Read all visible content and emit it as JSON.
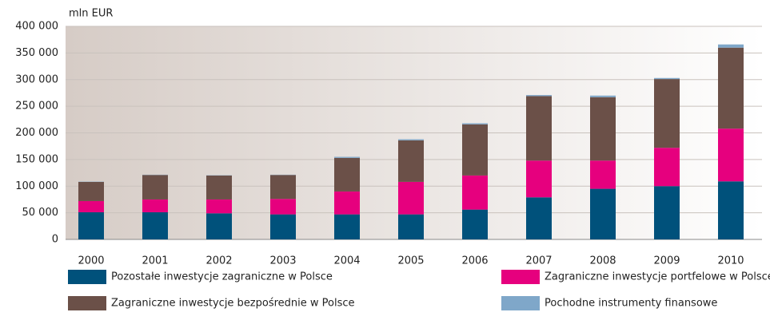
{
  "chart_data": {
    "type": "stacked_bar",
    "y_label": "mln EUR",
    "categories": [
      "2000",
      "2001",
      "2002",
      "2003",
      "2004",
      "2005",
      "2006",
      "2007",
      "2008",
      "2009",
      "2010"
    ],
    "series": [
      {
        "name": "Pozostałe inwestycje zagraniczne w Polsce",
        "color": "#00517b",
        "values": [
          51000,
          51000,
          49000,
          47000,
          47000,
          47000,
          56000,
          79000,
          95000,
          100000,
          109000
        ]
      },
      {
        "name": "Zagraniczne inwestycje portfelowe w Polsce",
        "color": "#e6007e",
        "values": [
          21000,
          24000,
          26000,
          29000,
          43000,
          61000,
          64000,
          69000,
          53000,
          72000,
          99000
        ]
      },
      {
        "name": "Zagraniczne inwestycje bezpośrednie w Polsce",
        "color": "#6b5048",
        "values": [
          36000,
          46000,
          45000,
          45000,
          63000,
          78000,
          96000,
          121000,
          119000,
          129000,
          152000
        ]
      },
      {
        "name": "Pochodne instrumenty finansowe",
        "color": "#7fa7c9",
        "values": [
          500,
          500,
          500,
          500,
          2000,
          2000,
          2000,
          2000,
          3000,
          2000,
          6000
        ]
      }
    ],
    "ylim": [
      0,
      400000
    ],
    "yticks": [
      0,
      {
        "value": 50000,
        "label": "50 000"
      },
      {
        "value": 100000,
        "label": "100 000"
      },
      {
        "value": 150000,
        "label": "150 000"
      },
      {
        "value": 200000,
        "label": "200 000"
      },
      {
        "value": 250000,
        "label": "250 000"
      },
      {
        "value": 300000,
        "label": "300 000"
      },
      {
        "value": 350000,
        "label": "350 000"
      },
      {
        "value": 400000,
        "label": "400 000"
      }
    ],
    "grid": true
  }
}
